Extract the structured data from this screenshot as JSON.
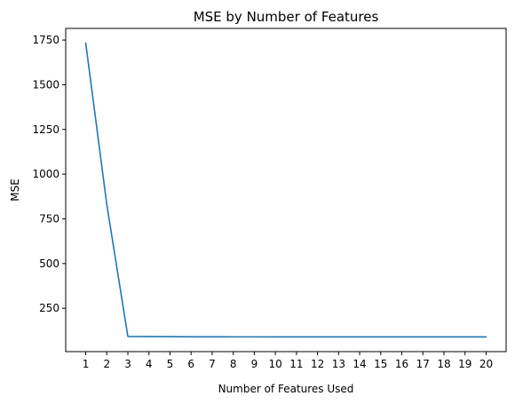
{
  "chart_data": {
    "type": "line",
    "title": "MSE by Number of Features",
    "xlabel": "Number of Features Used",
    "ylabel": "MSE",
    "x": [
      1,
      2,
      3,
      4,
      5,
      6,
      7,
      8,
      9,
      10,
      11,
      12,
      13,
      14,
      15,
      16,
      17,
      18,
      19,
      20
    ],
    "series": [
      {
        "color": "#1f77b4",
        "values": [
          1733,
          830,
          92,
          91.5,
          91,
          90.5,
          90.2,
          90,
          90,
          89.9,
          89.8,
          89.8,
          89.7,
          89.7,
          89.7,
          89.6,
          89.6,
          89.6,
          89.6,
          89.6
        ]
      }
    ],
    "xticks": [
      1,
      2,
      3,
      4,
      5,
      6,
      7,
      8,
      9,
      10,
      11,
      12,
      13,
      14,
      15,
      16,
      17,
      18,
      19,
      20
    ],
    "yticks": [
      250,
      500,
      750,
      1000,
      1250,
      1500,
      1750
    ],
    "xlim": [
      0.05,
      20.95
    ],
    "ylim": [
      7.4,
      1815
    ],
    "grid": false,
    "legend": "none"
  }
}
